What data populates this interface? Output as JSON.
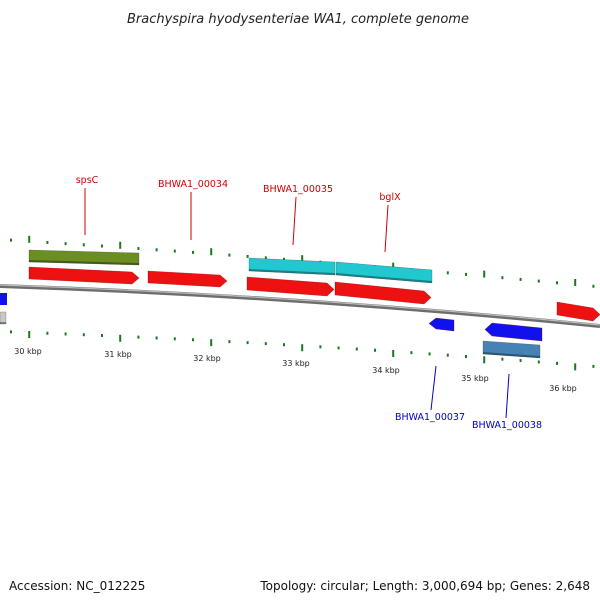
{
  "title": "Brachyspira hyodysenteriae WA1, complete genome",
  "footer": {
    "accession": "Accession: NC_012225",
    "summary": "Topology: circular; Length: 3,000,694 bp; Genes: 2,648"
  },
  "colors": {
    "backbone": "#888888",
    "tick": "#1a7a1a",
    "forward_gene": "#ee1111",
    "reverse_gene": "#1111ee",
    "forward_label": "#cc0000",
    "reverse_label": "#0000cc",
    "cds_green": "#6b8e23",
    "cds_cyan": "#22c8d0",
    "cds_steel": "#4682b4",
    "cds_gray": "#c8c8c8"
  },
  "scale_labels": [
    "30 kbp",
    "31 kbp",
    "32 kbp",
    "33 kbp",
    "34 kbp",
    "35 kbp",
    "36 kbp"
  ],
  "gene_labels": [
    {
      "text": "spsC",
      "strand": "forward"
    },
    {
      "text": "BHWA1_00034",
      "strand": "forward"
    },
    {
      "text": "BHWA1_00035",
      "strand": "forward"
    },
    {
      "text": "bglX",
      "strand": "forward"
    },
    {
      "text": "BHWA1_00037",
      "strand": "reverse"
    },
    {
      "text": "BHWA1_00038",
      "strand": "reverse"
    }
  ]
}
